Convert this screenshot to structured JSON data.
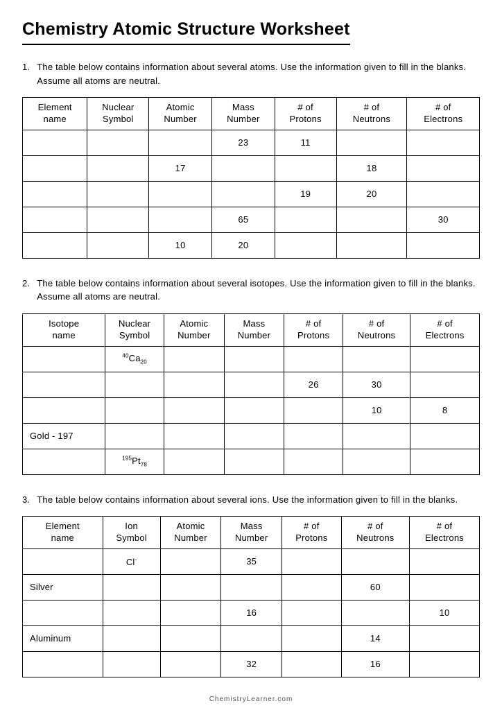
{
  "title": "Chemistry Atomic Structure Worksheet",
  "footer": "ChemistryLearner.com",
  "columns_a": [
    "Element\nname",
    "Nuclear\nSymbol",
    "Atomic\nNumber",
    "Mass\nNumber",
    "# of\nProtons",
    "# of\nNeutrons",
    "# of\nElectrons"
  ],
  "columns_b": [
    "Isotope\nname",
    "Nuclear\nSymbol",
    "Atomic\nNumber",
    "Mass\nNumber",
    "# of\nProtons",
    "# of\nNeutrons",
    "# of\nElectrons"
  ],
  "columns_c": [
    "Element\nname",
    "Ion\nSymbol",
    "Atomic\nNumber",
    "Mass\nNumber",
    "# of\nProtons",
    "# of\nNeutrons",
    "# of\nElectrons"
  ],
  "q1": {
    "num": "1.",
    "text": "The table below contains information about several atoms. Use the information given to fill in the blanks. Assume all atoms are neutral."
  },
  "q2": {
    "num": "2.",
    "text": "The table below contains information about several isotopes. Use the information given to fill in the blanks. Assume all atoms are neutral."
  },
  "q3": {
    "num": "3.",
    "text": "The table below contains information about several ions. Use the information given to fill in the blanks."
  },
  "t1": [
    [
      "",
      "",
      "",
      "23",
      "11",
      "",
      ""
    ],
    [
      "",
      "",
      "17",
      "",
      "",
      "18",
      ""
    ],
    [
      "",
      "",
      "",
      "",
      "19",
      "20",
      ""
    ],
    [
      "",
      "",
      "",
      "65",
      "",
      "",
      "30"
    ],
    [
      "",
      "",
      "10",
      "20",
      "",
      "",
      ""
    ]
  ],
  "t2": [
    [
      "",
      {
        "sup": "40",
        "main": "Ca",
        "sub": "20"
      },
      "",
      "",
      "",
      "",
      ""
    ],
    [
      "",
      "",
      "",
      "",
      "26",
      "30",
      ""
    ],
    [
      "",
      "",
      "",
      "",
      "",
      "10",
      "8"
    ],
    [
      "Gold - 197",
      "",
      "",
      "",
      "",
      "",
      ""
    ],
    [
      "",
      {
        "sup": "195",
        "main": "Pt",
        "sub": "78"
      },
      "",
      "",
      "",
      "",
      ""
    ]
  ],
  "t3": [
    [
      "",
      {
        "main": "Cl",
        "sup2": "-"
      },
      "",
      "35",
      "",
      "",
      ""
    ],
    [
      "Silver",
      "",
      "",
      "",
      "",
      "60",
      ""
    ],
    [
      "",
      "",
      "",
      "16",
      "",
      "",
      "10"
    ],
    [
      "Aluminum",
      "",
      "",
      "",
      "",
      "14",
      ""
    ],
    [
      "",
      "",
      "",
      "32",
      "",
      "16",
      ""
    ]
  ]
}
